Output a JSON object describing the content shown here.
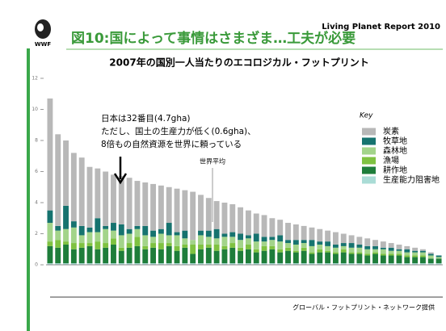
{
  "header": {
    "logo_text": "WWF",
    "title": "図10:国によって事情はさまざま…工夫が必要",
    "report": "Living Planet Report 2010"
  },
  "chart_data": {
    "type": "stacked_bar",
    "title": "2007年の国別一人当たりのエコロジカル・フットプリント",
    "categories": [
      null,
      null,
      null,
      null,
      null,
      null,
      null,
      null,
      null,
      null,
      null,
      null,
      null,
      null,
      null,
      null,
      null,
      null,
      null,
      null,
      null,
      null,
      null,
      null,
      null,
      null,
      null,
      null,
      null,
      null,
      null,
      null,
      null,
      null,
      null,
      null,
      null,
      null,
      null,
      null,
      null,
      null,
      null,
      null,
      null,
      null,
      null,
      null,
      null,
      null
    ],
    "series": [
      {
        "name": "炭素",
        "color": "#b8b8b8",
        "values": [
          7.2,
          5.9,
          4.2,
          4.4,
          4.4,
          3.9,
          3.2,
          3.5,
          3.1,
          3.1,
          3.3,
          2.9,
          2.8,
          3.0,
          2.8,
          2.3,
          2.8,
          2.6,
          3.1,
          2.3,
          2.1,
          1.8,
          2.0,
          1.8,
          1.7,
          1.6,
          1.3,
          1.4,
          1.2,
          1.0,
          1.1,
          1.0,
          0.9,
          0.8,
          0.8,
          0.7,
          0.8,
          0.6,
          0.5,
          0.5,
          0.5,
          0.4,
          0.4,
          0.3,
          0.3,
          0.2,
          0.2,
          0.1,
          0.1,
          0.0
        ]
      },
      {
        "name": "牧草地",
        "color": "#16736f",
        "values": [
          0.8,
          0.3,
          1.5,
          0.4,
          0.6,
          0.3,
          0.9,
          0.2,
          0.5,
          0.7,
          0.3,
          0.2,
          0.6,
          0.4,
          0.3,
          0.8,
          0.2,
          0.5,
          0.0,
          0.3,
          0.4,
          0.6,
          0.2,
          0.3,
          0.4,
          0.2,
          0.5,
          0.3,
          0.2,
          0.4,
          0.2,
          0.3,
          0.2,
          0.4,
          0.2,
          0.3,
          0.2,
          0.2,
          0.3,
          0.2,
          0.2,
          0.2,
          0.1,
          0.2,
          0.1,
          0.2,
          0.1,
          0.1,
          0.1,
          0.1
        ]
      },
      {
        "name": "森林地",
        "color": "#a3d48a",
        "values": [
          1.2,
          0.6,
          0.8,
          1.0,
          0.5,
          0.7,
          0.6,
          0.9,
          0.5,
          0.8,
          0.6,
          0.5,
          0.7,
          0.4,
          0.6,
          0.5,
          0.7,
          0.4,
          0.3,
          0.6,
          0.5,
          0.4,
          0.6,
          0.4,
          0.5,
          0.4,
          0.5,
          0.3,
          0.4,
          0.5,
          0.3,
          0.4,
          0.3,
          0.4,
          0.3,
          0.3,
          0.3,
          0.2,
          0.3,
          0.3,
          0.3,
          0.2,
          0.3,
          0.2,
          0.2,
          0.2,
          0.2,
          0.2,
          0.2,
          0.1
        ]
      },
      {
        "name": "漁場",
        "color": "#7fc241",
        "values": [
          0.3,
          0.5,
          0.2,
          0.4,
          0.3,
          0.2,
          0.5,
          0.3,
          0.4,
          0.2,
          0.3,
          0.6,
          0.2,
          0.3,
          0.4,
          0.2,
          0.3,
          0.2,
          0.6,
          0.3,
          0.2,
          0.4,
          0.2,
          0.3,
          0.2,
          0.3,
          0.2,
          0.3,
          0.2,
          0.2,
          0.2,
          0.1,
          0.2,
          0.1,
          0.2,
          0.1,
          0.1,
          0.2,
          0.1,
          0.1,
          0.1,
          0.1,
          0.1,
          0.1,
          0.1,
          0.1,
          0.1,
          0.1,
          0.0,
          0.0
        ]
      },
      {
        "name": "耕作地",
        "color": "#1e7d3a",
        "values": [
          1.1,
          1.0,
          1.2,
          0.9,
          1.0,
          1.1,
          0.9,
          1.0,
          1.2,
          0.8,
          1.0,
          1.1,
          0.9,
          1.0,
          0.9,
          1.1,
          0.8,
          1.0,
          0.6,
          0.9,
          1.0,
          0.8,
          0.9,
          1.0,
          0.8,
          0.9,
          0.7,
          0.8,
          0.9,
          0.7,
          0.8,
          0.7,
          0.8,
          0.6,
          0.7,
          0.7,
          0.6,
          0.7,
          0.6,
          0.6,
          0.5,
          0.6,
          0.5,
          0.5,
          0.5,
          0.4,
          0.4,
          0.4,
          0.3,
          0.3
        ]
      },
      {
        "name": "生産能力阻害地",
        "color": "#aadcd6",
        "values": [
          0.1,
          0.1,
          0.1,
          0.1,
          0.1,
          0.1,
          0.1,
          0.1,
          0.1,
          0.1,
          0.1,
          0.1,
          0.1,
          0.1,
          0.1,
          0.1,
          0.1,
          0.1,
          0.1,
          0.1,
          0.1,
          0.1,
          0.1,
          0.1,
          0.1,
          0.1,
          0.1,
          0.1,
          0.1,
          0.1,
          0.1,
          0.1,
          0.1,
          0.1,
          0.1,
          0.1,
          0.1,
          0.1,
          0.1,
          0.1,
          0.1,
          0.1,
          0.1,
          0.1,
          0.1,
          0.1,
          0.1,
          0.1,
          0.1,
          0.1
        ]
      }
    ],
    "ylim": [
      0,
      12
    ],
    "yticks": [
      0,
      2,
      4,
      6,
      8,
      10,
      12
    ],
    "legend_title": "Key",
    "annotations": [
      "日本は32番目(4.7gha)",
      "ただし、国土の生産力が低く(0.6gha)、",
      "8倍もの自然資源を世界に頼っている",
      "世界平均"
    ],
    "source": "グローバル・フットプリント・ネットワーク提供"
  }
}
